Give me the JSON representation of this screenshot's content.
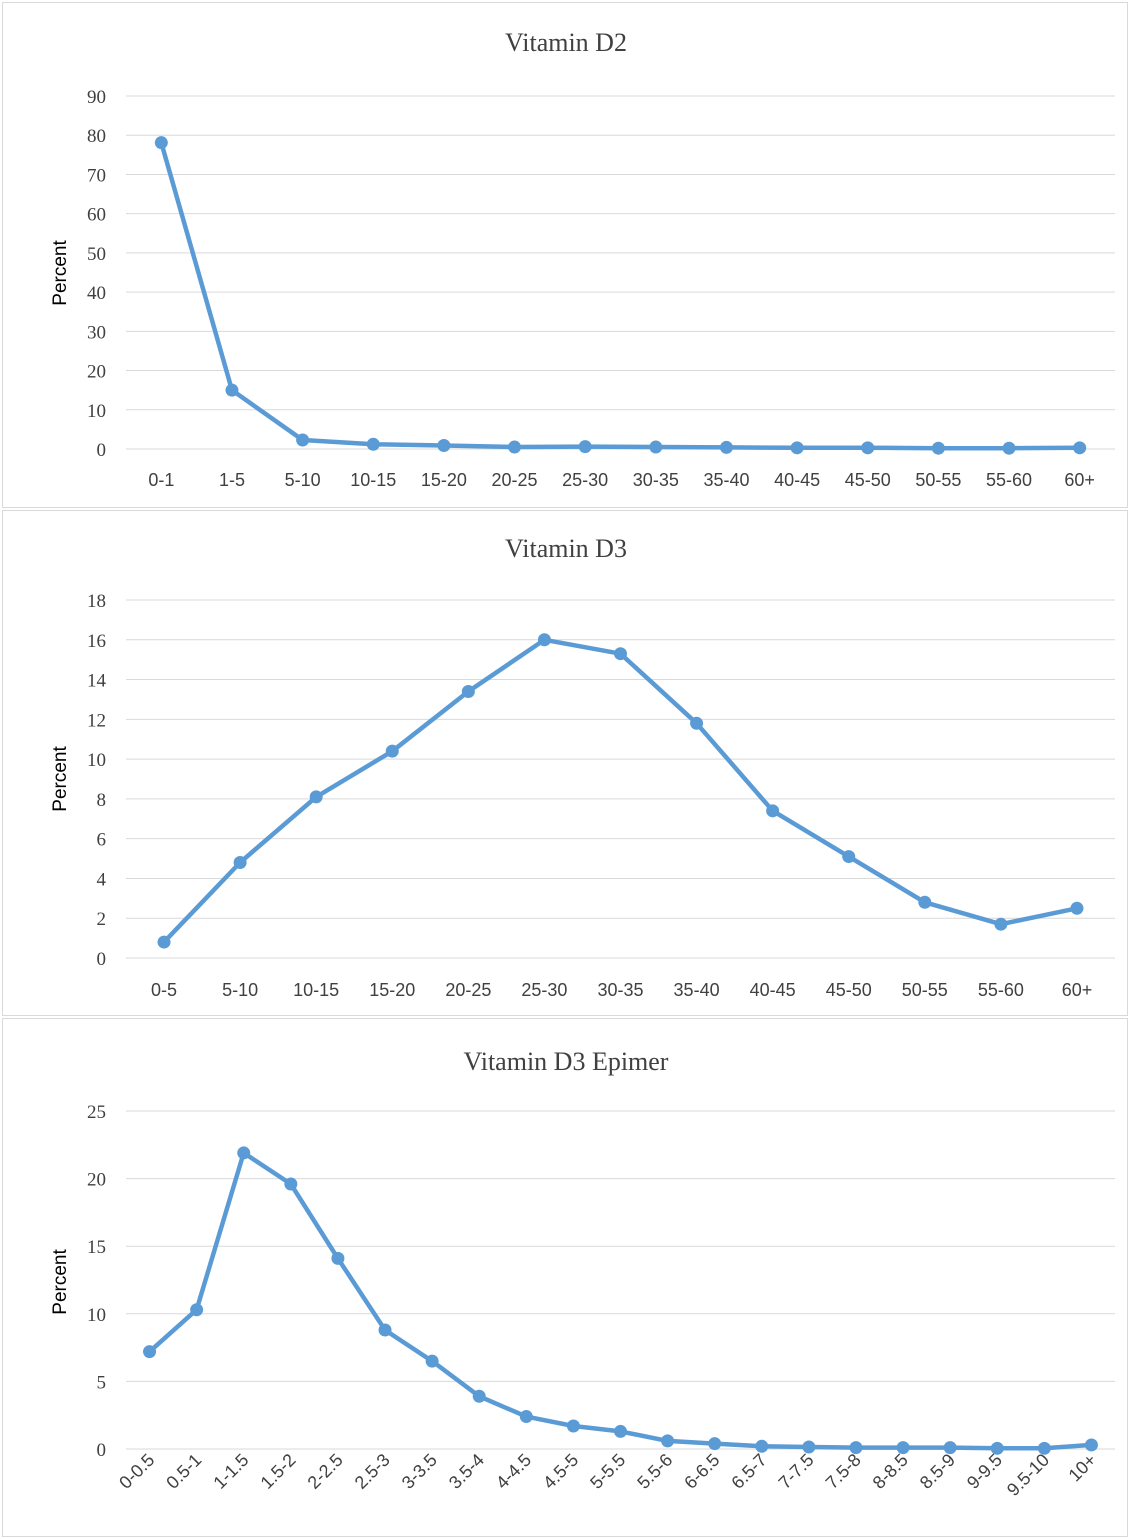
{
  "chart_data": [
    {
      "type": "line",
      "title": "Vitamin D2",
      "ylabel": "Percent",
      "xlabel": "",
      "ylim": [
        0,
        90
      ],
      "yticks": [
        0,
        10,
        20,
        30,
        40,
        50,
        60,
        70,
        80,
        90
      ],
      "grid": true,
      "categories": [
        "0-1",
        "1-5",
        "5-10",
        "10-15",
        "15-20",
        "20-25",
        "25-30",
        "30-35",
        "35-40",
        "40-45",
        "45-50",
        "50-55",
        "55-60",
        "60+"
      ],
      "series": [
        {
          "values": [
            78.1,
            15.0,
            2.3,
            1.2,
            0.9,
            0.5,
            0.6,
            0.5,
            0.4,
            0.3,
            0.3,
            0.2,
            0.2,
            0.3
          ]
        }
      ]
    },
    {
      "type": "line",
      "title": "Vitamin D3",
      "ylabel": "Percent",
      "xlabel": "",
      "ylim": [
        0,
        18
      ],
      "yticks": [
        0,
        2,
        4,
        6,
        8,
        10,
        12,
        14,
        16,
        18
      ],
      "grid": true,
      "categories": [
        "0-5",
        "5-10",
        "10-15",
        "15-20",
        "20-25",
        "25-30",
        "30-35",
        "35-40",
        "40-45",
        "45-50",
        "50-55",
        "55-60",
        "60+"
      ],
      "series": [
        {
          "values": [
            0.8,
            4.8,
            8.1,
            10.4,
            13.4,
            16.0,
            15.3,
            11.8,
            7.4,
            5.1,
            2.8,
            1.7,
            2.5
          ]
        }
      ]
    },
    {
      "type": "line",
      "title": "Vitamin D3 Epimer",
      "ylabel": "Percent",
      "xlabel": "",
      "ylim": [
        0,
        25
      ],
      "yticks": [
        0,
        5,
        10,
        15,
        20,
        25
      ],
      "grid": true,
      "categories": [
        "0-0.5",
        "0.5-1",
        "1-1.5",
        "1.5-2",
        "2-2.5",
        "2.5-3",
        "3-3.5",
        "3.5-4",
        "4-4.5",
        "4.5-5",
        "5-5.5",
        "5.5-6",
        "6-6.5",
        "6.5-7",
        "7-7.5",
        "7.5-8",
        "8-8.5",
        "8.5-9",
        "9-9.5",
        "9.5-10",
        "10+"
      ],
      "series": [
        {
          "values": [
            7.2,
            10.3,
            21.9,
            19.6,
            14.1,
            8.8,
            6.5,
            3.9,
            2.4,
            1.7,
            1.3,
            0.6,
            0.4,
            0.2,
            0.15,
            0.1,
            0.1,
            0.1,
            0.05,
            0.05,
            0.3
          ]
        }
      ]
    }
  ],
  "style": {
    "line_color": "#5b9bd5",
    "grid_color": "#d9d9d9",
    "text_color": "#404040"
  }
}
